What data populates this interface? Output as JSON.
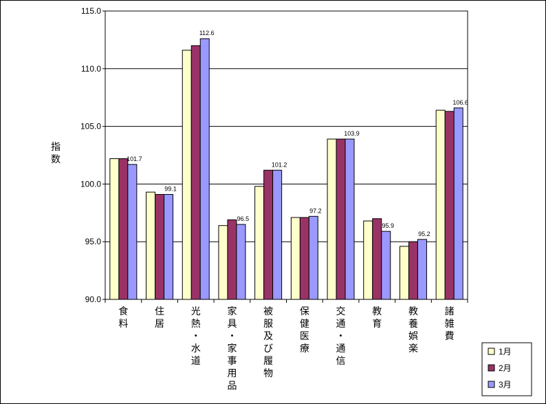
{
  "chart_data": {
    "type": "bar",
    "ylabel": "指数",
    "ylim": [
      90,
      115
    ],
    "yticks": [
      "90.0",
      "95.0",
      "100.0",
      "105.0",
      "110.0",
      "115.0"
    ],
    "grid": true,
    "legend_position": "bottom-right",
    "categories": [
      "食料",
      "住居",
      "光熱・水道",
      "家具・家事用品",
      "被服及び履物",
      "保健医療",
      "交通・通信",
      "教育",
      "教養娯楽",
      "諸雑費"
    ],
    "series": [
      {
        "name": "1月",
        "color": "#FFFFCC",
        "values": [
          102.2,
          99.3,
          111.6,
          96.4,
          99.8,
          97.1,
          103.9,
          96.8,
          94.6,
          106.4
        ]
      },
      {
        "name": "2月",
        "color": "#993366",
        "values": [
          102.2,
          99.1,
          112.0,
          96.9,
          101.2,
          97.1,
          103.9,
          97.0,
          95.0,
          106.3
        ]
      },
      {
        "name": "3月",
        "color": "#9999FF",
        "values": [
          101.7,
          99.1,
          112.6,
          96.5,
          101.2,
          97.2,
          103.9,
          95.9,
          95.2,
          106.6
        ]
      }
    ],
    "data_labels": [
      "101.7",
      "99.1",
      "112.6",
      "96.5",
      "101.2",
      "97.2",
      "103.9",
      "95.9",
      "95.2",
      "106.6"
    ]
  }
}
